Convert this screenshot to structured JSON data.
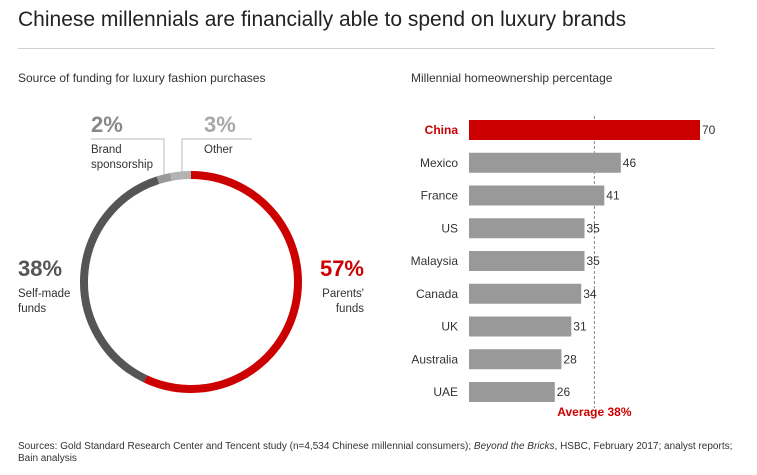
{
  "title": "Chinese millennials are financially able to spend on luxury brands",
  "colors": {
    "accent": "#cc0000",
    "dark": "#555555",
    "grey": "#999999",
    "light": "#b3b3b3"
  },
  "chart_data": [
    {
      "type": "pie",
      "style": "donut-ring",
      "title": "Source of funding for luxury fashion purchases",
      "slices": [
        {
          "label_lines": [
            "Parents'",
            "funds"
          ],
          "value": 57,
          "value_label": "57%",
          "color": "#cc0000"
        },
        {
          "label_lines": [
            "Self-made",
            "funds"
          ],
          "value": 38,
          "value_label": "38%",
          "color": "#555555"
        },
        {
          "label_lines": [
            "Brand",
            "sponsorship"
          ],
          "value": 2,
          "value_label": "2%",
          "color": "#999999"
        },
        {
          "label_lines": [
            "Other"
          ],
          "value": 3,
          "value_label": "3%",
          "color": "#b3b3b3"
        }
      ]
    },
    {
      "type": "bar",
      "orientation": "horizontal",
      "title": "Millennial homeownership percentage",
      "categories": [
        "China",
        "Mexico",
        "France",
        "US",
        "Malaysia",
        "Canada",
        "UK",
        "Australia",
        "UAE"
      ],
      "values": [
        70,
        46,
        41,
        35,
        35,
        34,
        31,
        28,
        26
      ],
      "value_labels": [
        "70",
        "46",
        "41",
        "35",
        "35",
        "34",
        "31",
        "28",
        "26"
      ],
      "highlight_index": 0,
      "average": 38,
      "average_label": "Average 38%",
      "xlim": [
        0,
        70
      ]
    }
  ],
  "sources": {
    "prefix": "Sources: Gold Standard Research Center and Tencent study (n=4,534 Chinese millennial consumers); ",
    "italic": "Beyond the Bricks",
    "suffix": ", HSBC, February 2017; analyst reports; Bain analysis"
  }
}
